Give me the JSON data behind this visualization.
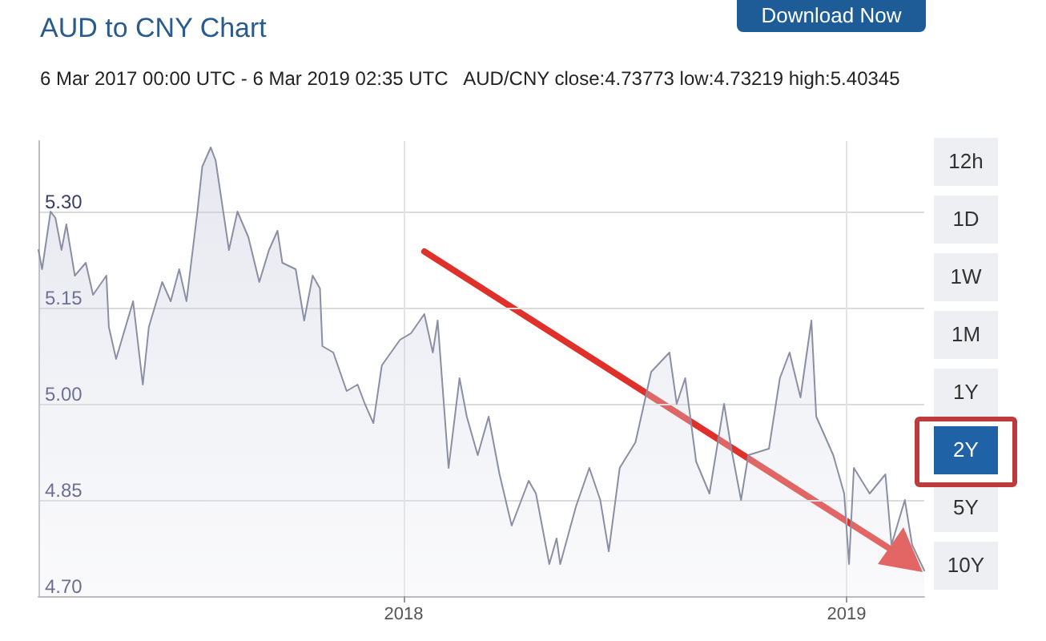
{
  "chart_data": {
    "type": "area",
    "title": "AUD to CNY Chart",
    "subtitle": "6 Mar 2017 00:00 UTC - 6 Mar 2019 02:35 UTC   AUD/CNY close:4.73773 low:4.73219 high:5.40345",
    "annotations": [
      "Download Now",
      "12h",
      "1D",
      "1W",
      "1M",
      "1Y",
      "2Y",
      "5Y",
      "10Y"
    ],
    "x": [
      "2017-03-06",
      "2017-03-09",
      "2017-03-16",
      "2017-03-20",
      "2017-03-25",
      "2017-03-29",
      "2017-04-05",
      "2017-04-14",
      "2017-04-20",
      "2017-05-01",
      "2017-05-03",
      "2017-05-09",
      "2017-05-23",
      "2017-05-31",
      "2017-06-05",
      "2017-06-16",
      "2017-06-23",
      "2017-06-30",
      "2017-07-06",
      "2017-07-15",
      "2017-07-19",
      "2017-07-26",
      "2017-07-30",
      "2017-08-10",
      "2017-08-17",
      "2017-08-26",
      "2017-09-04",
      "2017-09-12",
      "2017-09-19",
      "2017-09-23",
      "2017-10-04",
      "2017-10-11",
      "2017-10-18",
      "2017-10-24",
      "2017-10-26",
      "2017-11-04",
      "2017-11-15",
      "2017-11-24",
      "2017-11-30",
      "2017-12-07",
      "2017-12-14",
      "2017-12-29",
      "2018-01-07",
      "2018-01-18",
      "2018-01-25",
      "2018-01-29",
      "2018-02-07",
      "2018-02-16",
      "2018-02-22",
      "2018-03-03",
      "2018-03-12",
      "2018-03-21",
      "2018-03-31",
      "2018-04-14",
      "2018-04-20",
      "2018-05-01",
      "2018-05-07",
      "2018-05-10",
      "2018-05-23",
      "2018-06-03",
      "2018-06-12",
      "2018-06-19",
      "2018-06-28",
      "2018-07-11",
      "2018-07-24",
      "2018-08-08",
      "2018-08-14",
      "2018-08-21",
      "2018-08-30",
      "2018-09-10",
      "2018-09-22",
      "2018-09-28",
      "2018-10-06",
      "2018-10-12",
      "2018-10-29",
      "2018-11-07",
      "2018-11-15",
      "2018-11-24",
      "2018-12-03",
      "2018-12-07",
      "2018-12-21",
      "2018-12-30",
      "2019-01-03",
      "2019-01-07",
      "2019-01-20",
      "2019-02-02",
      "2019-02-07",
      "2019-02-18",
      "2019-02-24",
      "2019-03-06"
    ],
    "series": [
      {
        "color": "#8a8fa3",
        "values": [
          5.24,
          5.21,
          5.3,
          5.29,
          5.24,
          5.28,
          5.2,
          5.22,
          5.17,
          5.2,
          5.12,
          5.07,
          5.16,
          5.03,
          5.12,
          5.19,
          5.16,
          5.21,
          5.16,
          5.3,
          5.37,
          5.4,
          5.38,
          5.24,
          5.3,
          5.26,
          5.19,
          5.24,
          5.27,
          5.22,
          5.21,
          5.13,
          5.2,
          5.18,
          5.09,
          5.08,
          5.02,
          5.03,
          5.0,
          4.97,
          5.06,
          5.1,
          5.11,
          5.14,
          5.08,
          5.13,
          4.9,
          5.04,
          4.98,
          4.92,
          4.98,
          4.89,
          4.81,
          4.88,
          4.86,
          4.75,
          4.79,
          4.75,
          4.84,
          4.9,
          4.85,
          4.77,
          4.9,
          4.94,
          5.05,
          5.08,
          5.0,
          5.04,
          4.91,
          4.86,
          5.0,
          4.93,
          4.85,
          4.92,
          4.93,
          5.04,
          5.08,
          5.01,
          5.13,
          4.98,
          4.92,
          4.86,
          4.75,
          4.9,
          4.86,
          4.89,
          4.78,
          4.85,
          4.78,
          4.74
        ]
      }
    ],
    "xlim": [
      "2017-03-06",
      "2019-03-06"
    ],
    "xticks": [
      {
        "value": "2018-01-01",
        "label": "2018"
      },
      {
        "value": "2019-01-01",
        "label": "2019"
      }
    ],
    "ylim": [
      4.7,
      5.41
    ],
    "yticks": [
      {
        "value": 4.7,
        "label": "4.70"
      },
      {
        "value": 4.85,
        "label": "4.85"
      },
      {
        "value": 5.0,
        "label": "5.00"
      },
      {
        "value": 5.15,
        "label": "5.15"
      },
      {
        "value": 5.3,
        "label": "5.30"
      }
    ],
    "grid": true,
    "marker": "none",
    "line_style": "solid"
  }
}
